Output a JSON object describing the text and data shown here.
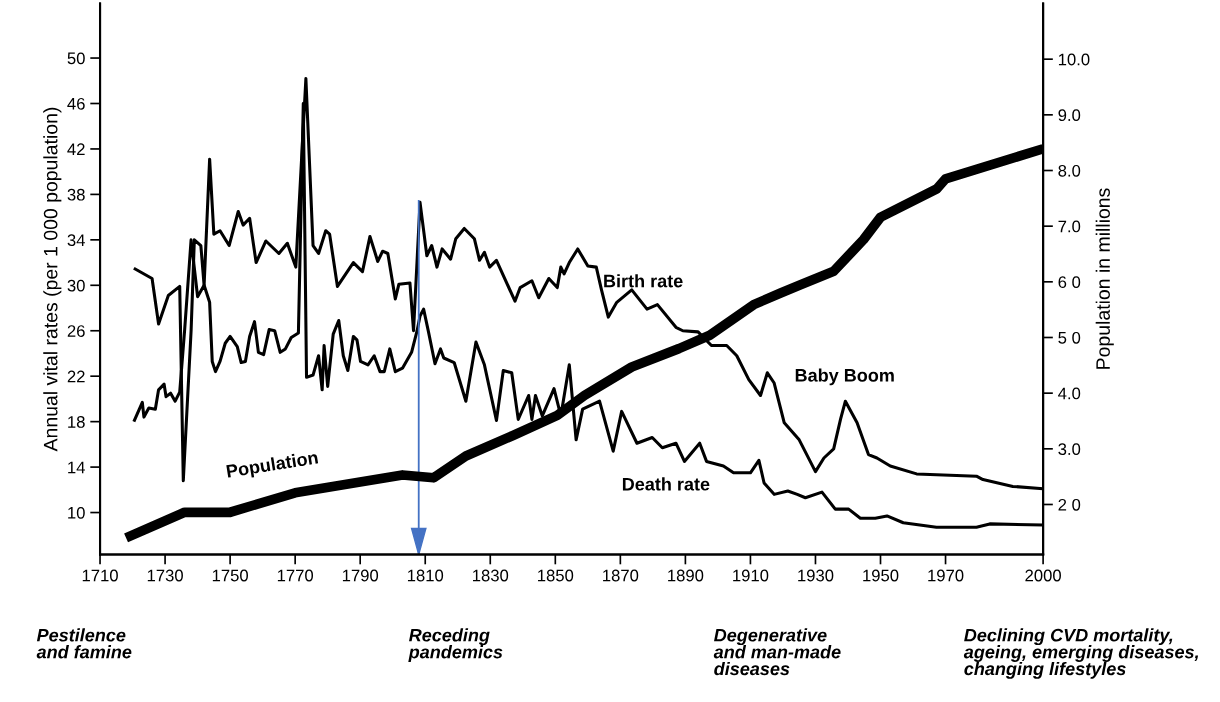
{
  "chart_data": {
    "type": "line",
    "ylabel": "Annual vital rates (per 1 000 population)",
    "y2label": "Population in millions",
    "xlim": [
      1710,
      2000
    ],
    "xticks": [
      1710,
      1730,
      1750,
      1770,
      1790,
      1810,
      1830,
      1850,
      1870,
      1890,
      1910,
      1930,
      1950,
      1970,
      2000
    ],
    "ylim": [
      6.3,
      54.8
    ],
    "yticks": [
      10,
      14,
      18,
      22,
      26,
      30,
      34,
      38,
      42,
      46,
      50
    ],
    "y2lim": [
      1.1,
      11.0
    ],
    "y2ticks": [
      {
        "value": 2,
        "label": "2 0"
      },
      {
        "value": 3,
        "label": "3.0"
      },
      {
        "value": 4,
        "label": "4.0"
      },
      {
        "value": 5,
        "label": "5 0"
      },
      {
        "value": 6,
        "label": "6 0"
      },
      {
        "value": 7,
        "label": "7.0"
      },
      {
        "value": 8,
        "label": "8.0"
      },
      {
        "value": 9,
        "label": "9.0"
      },
      {
        "value": 10,
        "label": "10.0"
      }
    ],
    "grid": false,
    "legend": false,
    "series": [
      {
        "name": "Birth rate",
        "color": "#000000",
        "x": [
          1720.4,
          1726,
          1728,
          1731,
          1734.5,
          1735.6,
          1738,
          1739,
          1741,
          1742,
          1743.7,
          1745,
          1746.9,
          1749.7,
          1752.5,
          1754,
          1756,
          1758,
          1761,
          1765,
          1767.6,
          1770.2,
          1773.3,
          1775.5,
          1777.2,
          1779.4,
          1780.6,
          1783,
          1787.9,
          1790.7,
          1793,
          1795.4,
          1796.9,
          1798.5,
          1800.8,
          1801.9,
          1805.3,
          1806.4,
          1808.4,
          1810.5,
          1812,
          1813.6,
          1815.2,
          1817.8,
          1819.4,
          1822,
          1825.1,
          1826.7,
          1828.2,
          1829.8,
          1831.9,
          1837.6,
          1839.2,
          1842.8,
          1844.9,
          1848,
          1850.6,
          1851.7,
          1852.7,
          1854.3,
          1856.9,
          1860,
          1862.6,
          1864.2,
          1866.3,
          1868.9,
          1873.5,
          1878.2,
          1881.4,
          1887.1,
          1889.2,
          1893.9,
          1898,
          1902.7,
          1905.8,
          1909.5,
          1913.1,
          1915.2,
          1917.3,
          1920.4,
          1925,
          1930,
          1932.6,
          1935.6,
          1937.7,
          1939.2,
          1942.8,
          1946.3,
          1948.9,
          1953,
          1961.1,
          1969.3,
          1979.5,
          1981.5,
          1990.7,
          2000
        ],
        "values": [
          31.5,
          30.6,
          26.6,
          29.1,
          29.9,
          12.8,
          26,
          34,
          33.5,
          30,
          41.1,
          34.5,
          34.8,
          33.5,
          36.5,
          35.3,
          35.9,
          32,
          33.9,
          32.8,
          33.7,
          31.6,
          48.2,
          33.5,
          32.8,
          34.8,
          34.5,
          29.9,
          32,
          31.2,
          34.3,
          32.1,
          33,
          32.8,
          28.8,
          30.1,
          30.2,
          26,
          37.3,
          32.6,
          33.5,
          31.6,
          33.2,
          32.3,
          34.1,
          35,
          34.1,
          32.2,
          32.9,
          31.6,
          32.2,
          28.6,
          29.8,
          30.4,
          28.9,
          30.6,
          29.8,
          31.6,
          31,
          32,
          33.2,
          31.7,
          31.6,
          29.6,
          27.2,
          28.5,
          29.6,
          27.9,
          28.3,
          26.3,
          26,
          25.9,
          24.7,
          24.7,
          23.8,
          21.7,
          20.3,
          22.3,
          21.4,
          17.9,
          16.4,
          13.6,
          14.8,
          15.6,
          18.2,
          19.8,
          17.9,
          15.1,
          14.8,
          14.1,
          13.4,
          13.3,
          13.2,
          12.9,
          12.3,
          12.1
        ]
      },
      {
        "name": "Death rate",
        "color": "#000000",
        "x": [
          1720.4,
          1723,
          1723.5,
          1725,
          1727,
          1728,
          1729.7,
          1730.3,
          1731.7,
          1733.1,
          1734.5,
          1736,
          1738,
          1740,
          1742,
          1743.7,
          1744.5,
          1745.5,
          1746.9,
          1748.5,
          1750,
          1752.2,
          1753.4,
          1754.7,
          1756,
          1757.5,
          1758.7,
          1760.3,
          1762,
          1763.7,
          1765.4,
          1767,
          1768.8,
          1771,
          1772.5,
          1773.5,
          1775.5,
          1777.2,
          1778.3,
          1778.9,
          1780,
          1781.7,
          1783.4,
          1784.8,
          1786.2,
          1787.9,
          1789,
          1790.1,
          1792.4,
          1794.3,
          1796.1,
          1797.4,
          1799.1,
          1800.8,
          1803,
          1805.8,
          1807.5,
          1808.4,
          1809.5,
          1811,
          1813,
          1814.7,
          1815.7,
          1818.9,
          1822.5,
          1825.6,
          1828.2,
          1831.9,
          1834,
          1836.6,
          1838.6,
          1841.8,
          1842.8,
          1843.9,
          1846,
          1849.6,
          1851.7,
          1854.3,
          1856.4,
          1858.4,
          1863.6,
          1867.8,
          1870.4,
          1875.1,
          1879.8,
          1882.9,
          1887.1,
          1889.7,
          1894.4,
          1896.5,
          1901.7,
          1904.8,
          1910,
          1912.6,
          1914.2,
          1917.3,
          1921.5,
          1924.4,
          1926.9,
          1932,
          1936.1,
          1940.2,
          1943.8,
          1948.4,
          1952,
          1957,
          1967.2,
          1979.5,
          1983.6,
          2000
        ],
        "values": [
          18,
          19.7,
          18.4,
          19.2,
          19.1,
          20.8,
          21.3,
          20.2,
          20.5,
          19.8,
          20.6,
          26,
          34,
          29,
          30,
          28.5,
          23.3,
          22.4,
          23.3,
          24.9,
          25.5,
          24.6,
          23.2,
          23.3,
          25.5,
          26.8,
          24.1,
          23.9,
          26.1,
          26,
          24.1,
          24.4,
          25.4,
          25.8,
          46,
          21.9,
          22.1,
          23.8,
          20.8,
          24.7,
          21.1,
          25.7,
          26.9,
          23.8,
          22.5,
          25.5,
          25.2,
          23.3,
          23,
          23.8,
          22.4,
          22.4,
          24.4,
          22.4,
          22.7,
          24.1,
          26,
          27.3,
          27.9,
          25.9,
          23.1,
          24.4,
          23.6,
          23.2,
          19.8,
          25,
          23,
          18.1,
          22.5,
          22.3,
          18.2,
          20.3,
          18.2,
          20.3,
          18.5,
          20.9,
          18.5,
          23,
          16.4,
          19.1,
          19.8,
          15.4,
          18.9,
          16.1,
          16.6,
          15.7,
          16.1,
          14.5,
          16.1,
          14.5,
          14.1,
          13.5,
          13.5,
          14.6,
          12.6,
          11.6,
          11.9,
          11.6,
          11.3,
          11.8,
          10.3,
          10.3,
          9.5,
          9.5,
          9.7,
          9.1,
          8.7,
          8.7,
          9.0,
          8.9
        ]
      },
      {
        "name": "Population",
        "color": "#000000",
        "axis": "y2",
        "x": [
          1718,
          1736,
          1750,
          1770,
          1789.5,
          1803,
          1812.6,
          1822.5,
          1837,
          1850.6,
          1859,
          1873.5,
          1888,
          1897.5,
          1911,
          1919.3,
          1925.6,
          1935.6,
          1944.8,
          1950,
          1967.3,
          1970,
          2000
        ],
        "values": [
          1.4,
          1.86,
          1.86,
          2.21,
          2.4,
          2.53,
          2.48,
          2.87,
          3.24,
          3.6,
          3.96,
          4.47,
          4.8,
          5.04,
          5.59,
          5.8,
          5.95,
          6.19,
          6.76,
          7.16,
          7.67,
          7.85,
          8.39
        ]
      }
    ],
    "ref_lines": [
      {
        "axis": "x",
        "value": 1808,
        "color": "#4472c4"
      }
    ],
    "annotations": [
      {
        "text": "Baby Boom",
        "x": 1939,
        "y": 20
      },
      "Pestilence\nand famine",
      "Receding\npandemics",
      "Degenerative\nand man-made\ndiseases",
      "Declining CVD mortality,\nageing, emerging diseases,\nchanging lifestyles"
    ]
  }
}
